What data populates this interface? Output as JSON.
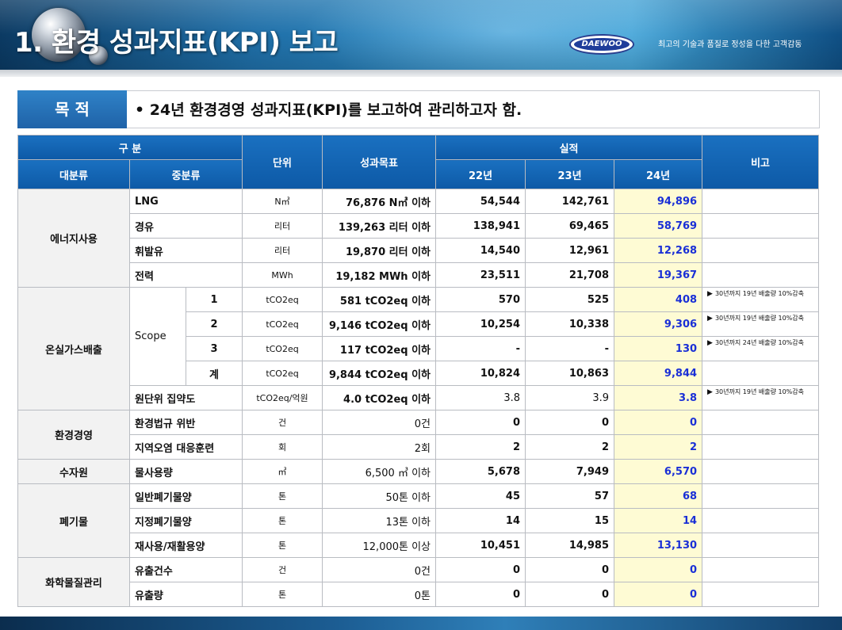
{
  "header": {
    "title": "1. 환경 성과지표(KPI) 보고",
    "logo_text": "DAEWOO",
    "slogan": "최고의 기술과 품질로  정성을 다한 고객감동"
  },
  "purpose": {
    "label": "목 적",
    "text": "•  24년 환경경영 성과지표(KPI)를 보고하여 관리하고자 함."
  },
  "table": {
    "headers": {
      "gubun": "구 분",
      "unit": "단위",
      "target": "성과목표",
      "actual": "실적",
      "note": "비고",
      "major": "대분류",
      "minor": "중분류",
      "y22": "22년",
      "y23": "23년",
      "y24": "24년"
    },
    "categories": {
      "energy": "에너지사용",
      "ghg": "온실가스배출",
      "scope": "Scope",
      "env": "환경경영",
      "water": "수자원",
      "waste": "폐기물",
      "chem": "화학물질관리"
    },
    "rows": [
      {
        "sub": "LNG",
        "unit": "N㎥",
        "target": "76,876 N㎥ 이하",
        "y22": "54,544",
        "y23": "142,761",
        "y24": "94,896",
        "note": ""
      },
      {
        "sub": "경유",
        "unit": "리터",
        "target": "139,263 리터 이하",
        "y22": "138,941",
        "y23": "69,465",
        "y24": "58,769",
        "note": ""
      },
      {
        "sub": "휘발유",
        "unit": "리터",
        "target": "19,870 리터 이하",
        "y22": "14,540",
        "y23": "12,961",
        "y24": "12,268",
        "note": ""
      },
      {
        "sub": "전력",
        "unit": "MWh",
        "target": "19,182 MWh 이하",
        "y22": "23,511",
        "y23": "21,708",
        "y24": "19,367",
        "note": ""
      },
      {
        "sub": "1",
        "unit": "tCO2eq",
        "target": "581 tCO2eq 이하",
        "y22": "570",
        "y23": "525",
        "y24": "408",
        "note": "30년까지 19년 배출량 10%감축"
      },
      {
        "sub": "2",
        "unit": "tCO2eq",
        "target": "9,146 tCO2eq 이하",
        "y22": "10,254",
        "y23": "10,338",
        "y24": "9,306",
        "note": "30년까지 19년 배출량 10%감축"
      },
      {
        "sub": "3",
        "unit": "tCO2eq",
        "target": "117 tCO2eq 이하",
        "y22": "-",
        "y23": "-",
        "y24": "130",
        "note": "30년까지 24년 배출량 10%감축"
      },
      {
        "sub": "계",
        "unit": "tCO2eq",
        "target": "9,844 tCO2eq 이하",
        "y22": "10,824",
        "y23": "10,863",
        "y24": "9,844",
        "note": ""
      },
      {
        "sub": "원단위 집약도",
        "unit": "tCO2eq/억원",
        "target": "4.0 tCO2eq 이하",
        "y22": "3.8",
        "y23": "3.9",
        "y24": "3.8",
        "note": "30년까지 19년 배출량 10%감축"
      },
      {
        "sub": "환경법규 위반",
        "unit": "건",
        "target": "0건",
        "y22": "0",
        "y23": "0",
        "y24": "0",
        "note": ""
      },
      {
        "sub": "지역오염 대응훈련",
        "unit": "회",
        "target": "2회",
        "y22": "2",
        "y23": "2",
        "y24": "2",
        "note": ""
      },
      {
        "sub": "물사용량",
        "unit": "㎥",
        "target": "6,500 ㎥ 이하",
        "y22": "5,678",
        "y23": "7,949",
        "y24": "6,570",
        "note": ""
      },
      {
        "sub": "일반폐기물양",
        "unit": "톤",
        "target": "50톤 이하",
        "y22": "45",
        "y23": "57",
        "y24": "68",
        "note": ""
      },
      {
        "sub": "지정폐기물양",
        "unit": "톤",
        "target": "13톤 이하",
        "y22": "14",
        "y23": "15",
        "y24": "14",
        "note": ""
      },
      {
        "sub": "재사용/재활용양",
        "unit": "톤",
        "target": "12,000톤 이상",
        "y22": "10,451",
        "y23": "14,985",
        "y24": "13,130",
        "note": ""
      },
      {
        "sub": "유출건수",
        "unit": "건",
        "target": "0건",
        "y22": "0",
        "y23": "0",
        "y24": "0",
        "note": ""
      },
      {
        "sub": "유출량",
        "unit": "톤",
        "target": "0톤",
        "y22": "0",
        "y23": "0",
        "y24": "0",
        "note": ""
      }
    ]
  },
  "colors": {
    "header_blue": "#0d59a6",
    "highlight_24": "#fefbd4",
    "value_24": "#1a2fd6"
  }
}
